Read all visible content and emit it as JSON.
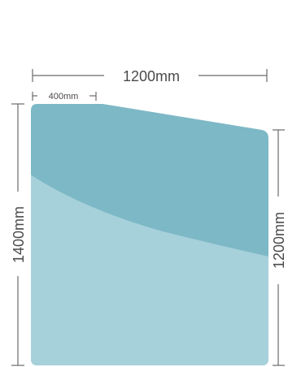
{
  "panel": {
    "top_width": "1200mm",
    "top_offset": "400mm",
    "left_height": "1400mm",
    "right_height": "1200mm"
  },
  "colors": {
    "panel_dark": "#7db8c6",
    "panel_light": "#a6d0da",
    "dimension_line": "#6a6a6a",
    "dimension_text": "#4a4a4a",
    "background": "#ffffff"
  }
}
